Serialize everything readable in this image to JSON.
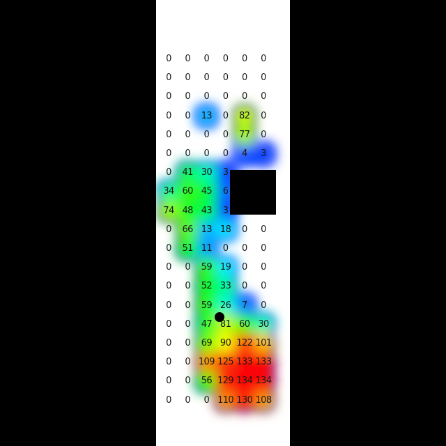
{
  "chart_data": {
    "type": "heatmap",
    "rows": [
      [
        0,
        0,
        0,
        0,
        0,
        0
      ],
      [
        0,
        0,
        0,
        0,
        0,
        0
      ],
      [
        0,
        0,
        0,
        0,
        0,
        0
      ],
      [
        0,
        0,
        13,
        0,
        82,
        0
      ],
      [
        0,
        0,
        0,
        0,
        77,
        0
      ],
      [
        0,
        0,
        0,
        0,
        4,
        3
      ],
      [
        0,
        41,
        30,
        3,
        null,
        null
      ],
      [
        34,
        60,
        45,
        6,
        null,
        null
      ],
      [
        74,
        48,
        43,
        3,
        null,
        null
      ],
      [
        0,
        66,
        13,
        18,
        0,
        0
      ],
      [
        0,
        51,
        11,
        0,
        0,
        0
      ],
      [
        0,
        0,
        59,
        19,
        0,
        0
      ],
      [
        0,
        0,
        52,
        33,
        0,
        0
      ],
      [
        0,
        0,
        59,
        26,
        7,
        0
      ],
      [
        0,
        0,
        47,
        81,
        60,
        30
      ],
      [
        0,
        0,
        69,
        90,
        122,
        101
      ],
      [
        0,
        0,
        109,
        125,
        133,
        133
      ],
      [
        0,
        0,
        56,
        129,
        134,
        134
      ],
      [
        0,
        0,
        0,
        110,
        130,
        108
      ]
    ],
    "color_scale": {
      "min": 0,
      "max": 134,
      "colors": [
        "#0000ff",
        "#00ffff",
        "#00ff00",
        "#ffff00",
        "#ff0000"
      ]
    },
    "marker": {
      "row": 13.6,
      "col": 2.7
    },
    "redacted_cells": [
      [
        6,
        4
      ],
      [
        6,
        5
      ],
      [
        7,
        4
      ],
      [
        7,
        5
      ],
      [
        8,
        4
      ],
      [
        8,
        5
      ]
    ]
  }
}
